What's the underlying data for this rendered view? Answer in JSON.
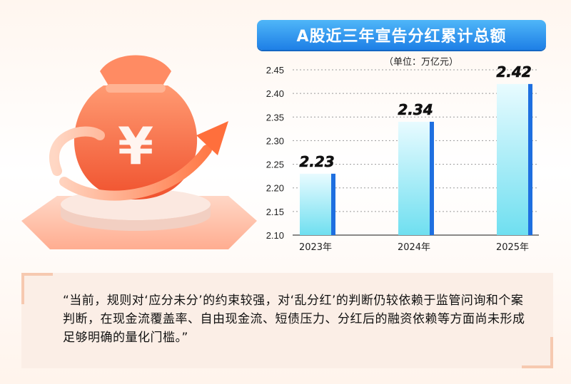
{
  "chart_data": {
    "type": "bar",
    "title": "A股近三年宣告分红累计总额",
    "unit_label": "（单位：万亿元）",
    "categories": [
      "2023年",
      "2024年",
      "2025年"
    ],
    "values": [
      2.23,
      2.34,
      2.42
    ],
    "value_labels": [
      "2.23",
      "2.34",
      "2.42"
    ],
    "ylim": [
      2.1,
      2.45
    ],
    "yticks": [
      "2.45",
      "2.40",
      "2.35",
      "2.30",
      "2.25",
      "2.20",
      "2.15",
      "2.10"
    ],
    "ytick_values": [
      2.45,
      2.4,
      2.35,
      2.3,
      2.25,
      2.2,
      2.15,
      2.1
    ],
    "grid": true,
    "colors": {
      "bar_light": "#e8fbff",
      "bar_dark": "#6fdff0",
      "bar_side": "#1e6fe0",
      "title_bg": "#2a8ff0"
    }
  },
  "quote": "“当前，规则对‘应分未分’的约束较强，对‘乱分红’的判断仍较依赖于监管问询和个案判断，在现金流覆盖率、自由现金流、短债压力、分红后的融资依赖等方面尚未形成足够明确的量化门槛。”",
  "illustration": {
    "icon": "money-bag-yen-icon",
    "symbol": "¥"
  }
}
